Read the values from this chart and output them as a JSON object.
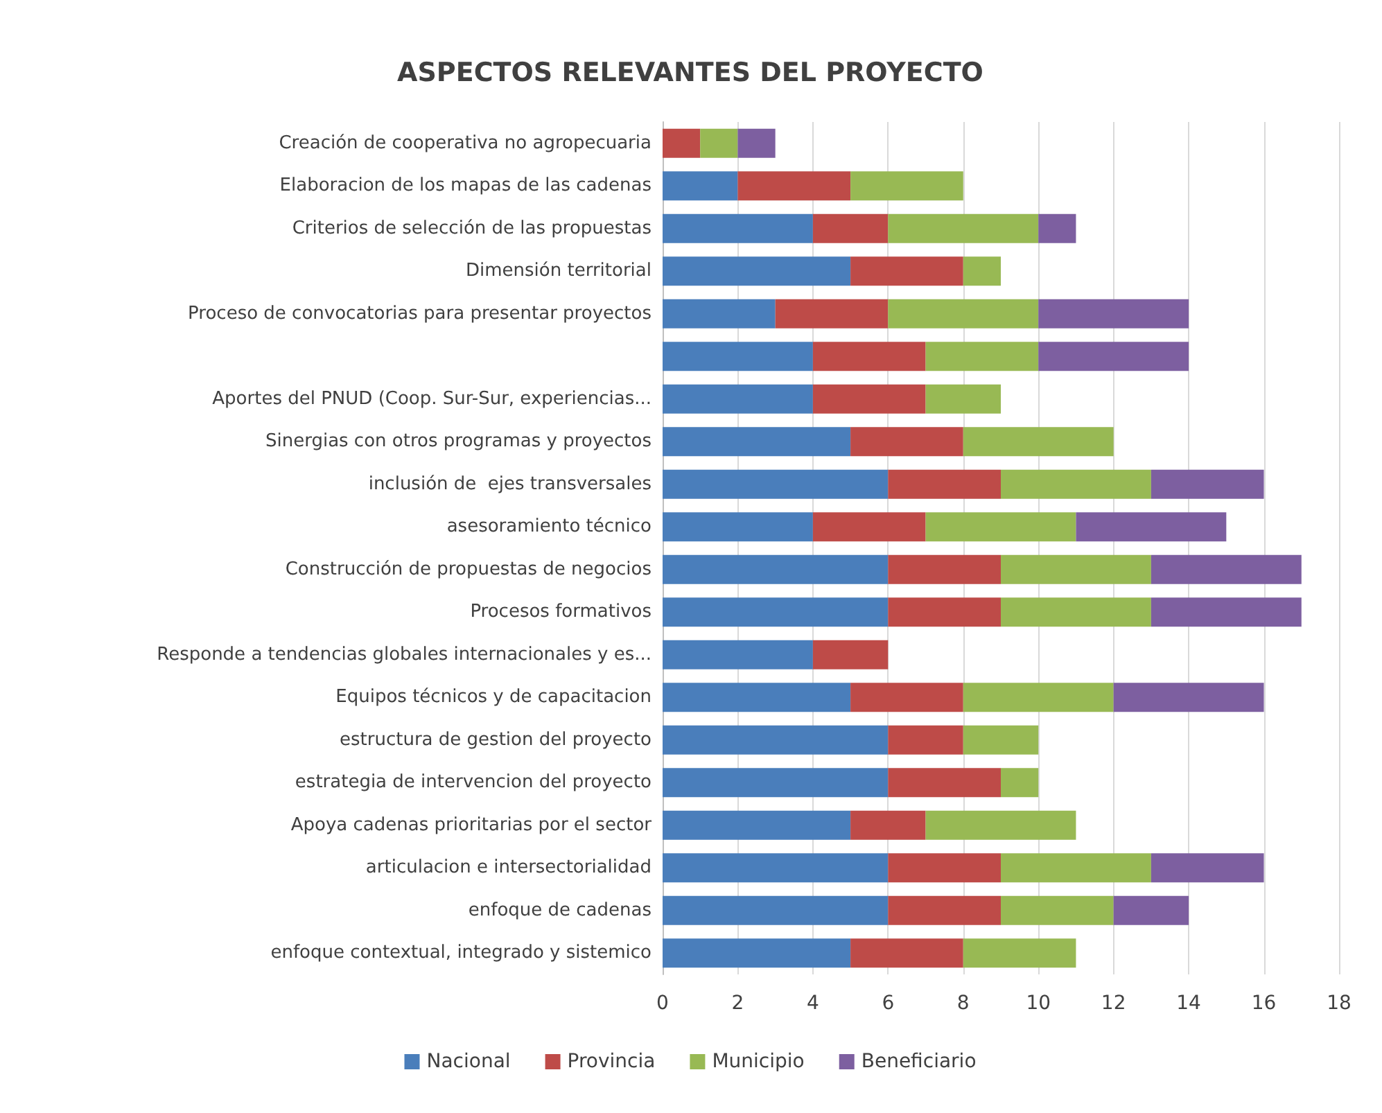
{
  "chart_data": {
    "type": "bar",
    "orientation": "horizontal",
    "stacked": true,
    "title": "ASPECTOS RELEVANTES DEL PROYECTO",
    "categories": [
      "Creación de cooperativa no agropecuaria",
      "Elaboracion de los mapas de las cadenas",
      "Criterios de selección de las propuestas",
      "Dimensión territorial",
      "Proceso de convocatorias para presentar proyectos",
      null,
      "Aportes del PNUD (Coop. Sur-Sur, experiencias...",
      "Sinergias con otros programas y proyectos",
      "inclusión de  ejes transversales",
      "asesoramiento técnico",
      "Construcción de propuestas de negocios",
      "Procesos formativos",
      "Responde a tendencias globales internacionales y es...",
      "Equipos técnicos y de capacitacion",
      "estructura de gestion del proyecto",
      "estrategia de intervencion del proyecto",
      "Apoya cadenas prioritarias por el sector",
      "articulacion e intersectorialidad",
      "enfoque de cadenas",
      "enfoque contextual, integrado y sistemico"
    ],
    "series": [
      {
        "name": "Nacional",
        "color": "#4a7ebb",
        "values": [
          0,
          2,
          4,
          5,
          3,
          4,
          4,
          5,
          6,
          4,
          6,
          6,
          4,
          5,
          6,
          6,
          5,
          6,
          6,
          5
        ]
      },
      {
        "name": "Provincia",
        "color": "#be4b48",
        "values": [
          1,
          3,
          2,
          3,
          3,
          3,
          3,
          3,
          3,
          3,
          3,
          3,
          2,
          3,
          2,
          3,
          2,
          3,
          3,
          3
        ]
      },
      {
        "name": "Municipio",
        "color": "#98b954",
        "values": [
          1,
          3,
          4,
          1,
          4,
          3,
          2,
          4,
          4,
          4,
          4,
          4,
          0,
          4,
          2,
          1,
          4,
          4,
          3,
          3
        ]
      },
      {
        "name": "Beneficiario",
        "color": "#7d5fa0",
        "values": [
          1,
          0,
          1,
          0,
          4,
          4,
          0,
          0,
          3,
          4,
          4,
          4,
          0,
          4,
          0,
          0,
          0,
          3,
          2,
          0
        ]
      }
    ],
    "xlim": [
      0,
      18
    ],
    "xticks": [
      0,
      2,
      4,
      6,
      8,
      10,
      12,
      14,
      16,
      18
    ],
    "grid": "x",
    "legend": "bottom"
  }
}
